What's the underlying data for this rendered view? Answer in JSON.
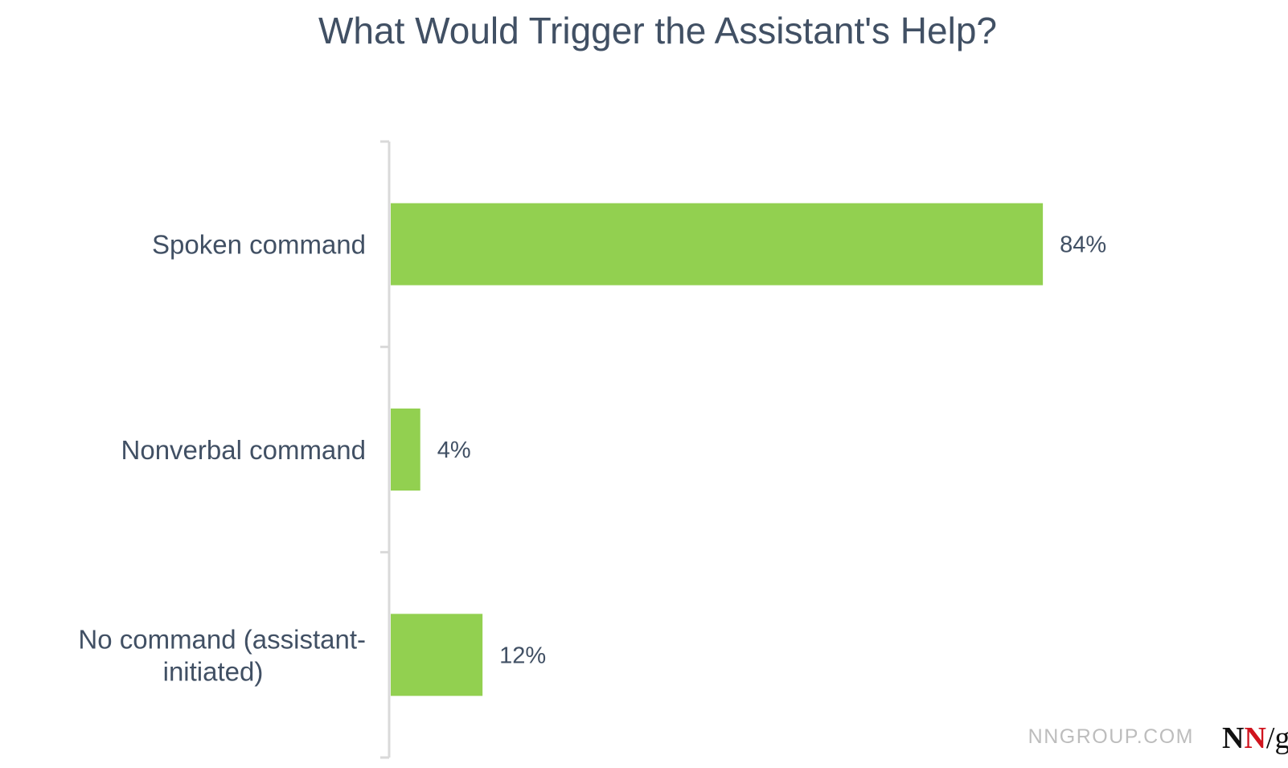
{
  "chart_data": {
    "type": "bar",
    "orientation": "horizontal",
    "title": "What Would Trigger the Assistant's Help?",
    "categories": [
      [
        "Spoken command"
      ],
      [
        "Nonverbal command"
      ],
      [
        "No command (assistant-",
        "initiated)"
      ]
    ],
    "values": [
      84,
      4,
      12
    ],
    "value_labels": [
      "84%",
      "4%",
      "12%"
    ],
    "xlim": [
      0,
      100
    ],
    "bar_color": "#92d050",
    "axis_color": "#d9d9d9",
    "text_color": "#415064",
    "grid": false,
    "legend": "none"
  },
  "branding": {
    "site": "NNGROUP.COM",
    "logo_parts": [
      "N",
      "N",
      "/",
      "g"
    ],
    "logo_colors": [
      "#111111",
      "#d0141e",
      "#111111",
      "#111111"
    ]
  }
}
